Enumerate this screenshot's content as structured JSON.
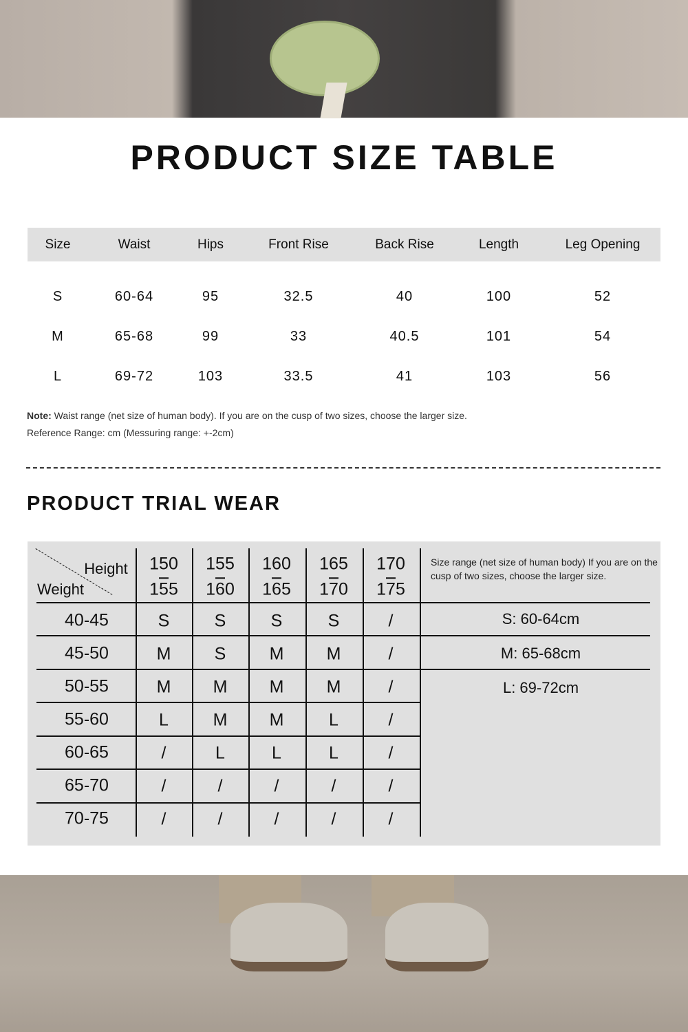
{
  "size_table": {
    "title": "PRODUCT SIZE TABLE",
    "headers": [
      "Size",
      "Waist",
      "Hips",
      "Front Rise",
      "Back Rise",
      "Length",
      "Leg Opening"
    ],
    "rows": [
      [
        "S",
        "60-64",
        "95",
        "32.5",
        "40",
        "100",
        "52"
      ],
      [
        "M",
        "65-68",
        "99",
        "33",
        "40.5",
        "101",
        "54"
      ],
      [
        "L",
        "69-72",
        "103",
        "33.5",
        "41",
        "103",
        "56"
      ]
    ],
    "note_label": "Note:",
    "note_text": " Waist range (net size of human body). If you are on the cusp of two sizes, choose the larger size.",
    "reference": "Reference Range: cm (Messuring range: +-2cm)"
  },
  "trial_wear": {
    "title": "PRODUCT TRIAL WEAR",
    "height_label": "Height",
    "weight_label": "Weight",
    "heights": [
      [
        "150",
        "155"
      ],
      [
        "155",
        "160"
      ],
      [
        "160",
        "165"
      ],
      [
        "165",
        "170"
      ],
      [
        "170",
        "175"
      ]
    ],
    "weights": [
      "40-45",
      "45-50",
      "50-55",
      "55-60",
      "60-65",
      "65-70",
      "70-75"
    ],
    "grid": [
      [
        "S",
        "S",
        "S",
        "S",
        "/"
      ],
      [
        "M",
        "S",
        "M",
        "M",
        "/"
      ],
      [
        "M",
        "M",
        "M",
        "M",
        "/"
      ],
      [
        "L",
        "M",
        "M",
        "L",
        "/"
      ],
      [
        "/",
        "L",
        "L",
        "L",
        "/"
      ],
      [
        "/",
        "/",
        "/",
        "/",
        "/"
      ],
      [
        "/",
        "/",
        "/",
        "/",
        "/"
      ]
    ],
    "size_note": "Size range (net size of human body) If you are on the cusp of two sizes, choose the larger size.",
    "ranges": [
      "S: 60-64cm",
      "M: 65-68cm",
      "L: 69-72cm"
    ]
  }
}
